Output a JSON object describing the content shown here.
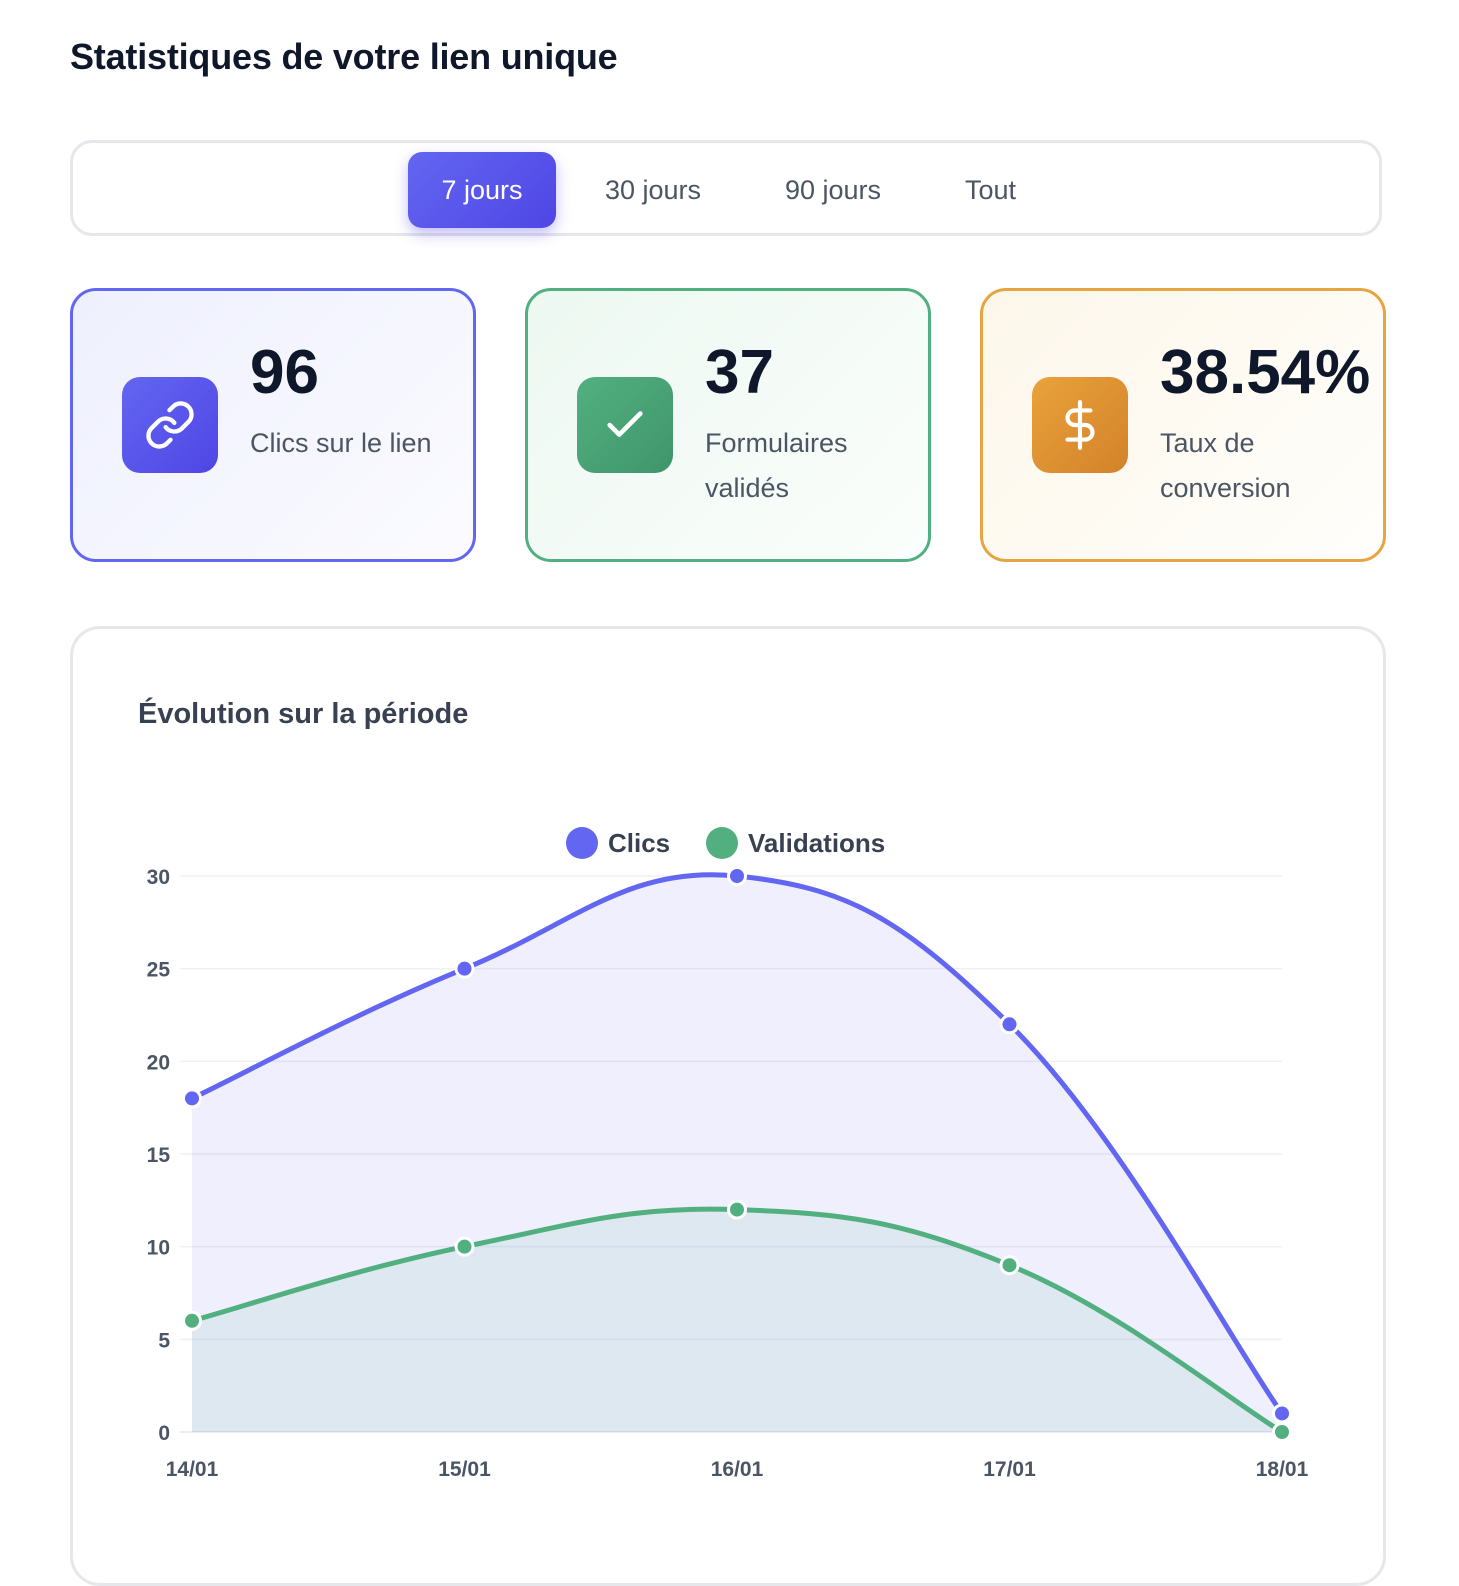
{
  "page": {
    "title": "Statistiques de votre lien unique"
  },
  "period_tabs": [
    {
      "label": "7 jours",
      "active": true
    },
    {
      "label": "30 jours",
      "active": false
    },
    {
      "label": "90 jours",
      "active": false
    },
    {
      "label": "Tout",
      "active": false
    }
  ],
  "stats": {
    "clicks": {
      "value": "96",
      "label": "Clics sur le lien",
      "icon": "link-icon",
      "color": "#6366f1"
    },
    "forms": {
      "value": "37",
      "label": "Formulaires validés",
      "icon": "check-icon",
      "color": "#52b080"
    },
    "conversion": {
      "value": "38.54%",
      "label": "Taux de conversion",
      "icon": "dollar-icon",
      "color": "#e6a540"
    }
  },
  "chart_title": "Évolution sur la période",
  "chart_data": {
    "type": "area",
    "title": "Évolution sur la période",
    "categories": [
      "14/01",
      "15/01",
      "16/01",
      "17/01",
      "18/01"
    ],
    "series": [
      {
        "name": "Clics",
        "values": [
          18,
          25,
          30,
          22,
          1
        ],
        "color": "#6366f1"
      },
      {
        "name": "Validations",
        "values": [
          6,
          10,
          12,
          9,
          0
        ],
        "color": "#52b080"
      }
    ],
    "ylim": [
      0,
      30
    ],
    "yticks": [
      0,
      5,
      10,
      15,
      20,
      25,
      30
    ],
    "grid": true,
    "legend": "top-center"
  }
}
